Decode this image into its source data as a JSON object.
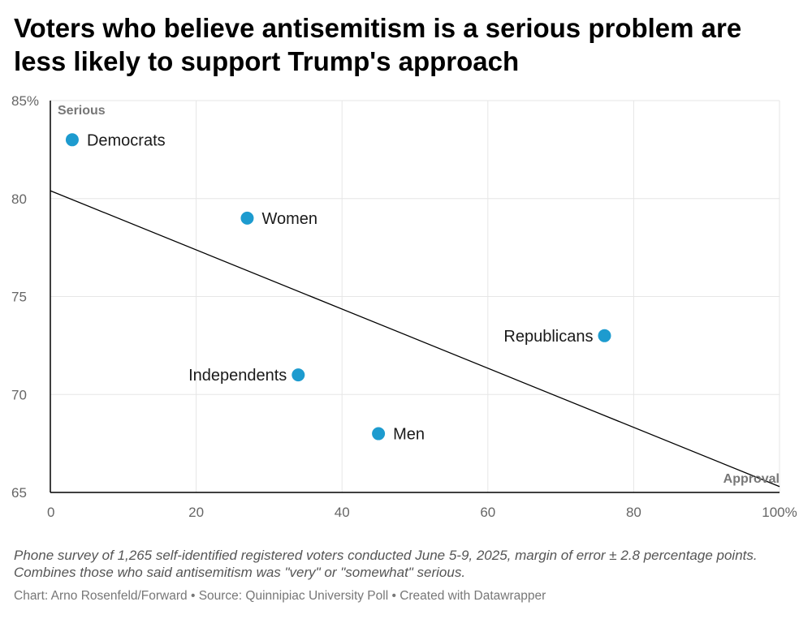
{
  "title": "Voters who believe antisemitism is a serious problem are less likely to support Trump's approach",
  "notes": "Phone survey of 1,265 self-identified registered voters conducted June 5-9, 2025, margin of error ± 2.8 percentage points. Combines those who said antisemitism was \"very\" or \"somewhat\" serious.",
  "footer": "Chart: Arno Rosenfeld/Forward • Source: Quinnipiac University Poll • Created with Datawrapper",
  "colors": {
    "point": "#1d9bcf",
    "grid": "#e6e6e6",
    "axis": "#000000",
    "trend": "#000000"
  },
  "chart_data": {
    "type": "scatter",
    "xlabel": "Approval",
    "ylabel": "Serious",
    "xlim": [
      0,
      100
    ],
    "ylim": [
      65,
      85
    ],
    "x_ticks": [
      {
        "value": 0,
        "label": "0"
      },
      {
        "value": 20,
        "label": "20"
      },
      {
        "value": 40,
        "label": "40"
      },
      {
        "value": 60,
        "label": "60"
      },
      {
        "value": 80,
        "label": "80"
      },
      {
        "value": 100,
        "label": "100%"
      }
    ],
    "y_ticks": [
      {
        "value": 65,
        "label": "65"
      },
      {
        "value": 70,
        "label": "70"
      },
      {
        "value": 75,
        "label": "75"
      },
      {
        "value": 80,
        "label": "80"
      },
      {
        "value": 85,
        "label": "85%"
      }
    ],
    "points": [
      {
        "name": "Democrats",
        "x": 3,
        "y": 83,
        "label_side": "right"
      },
      {
        "name": "Women",
        "x": 27,
        "y": 79,
        "label_side": "right"
      },
      {
        "name": "Republicans",
        "x": 76,
        "y": 73,
        "label_side": "left"
      },
      {
        "name": "Independents",
        "x": 34,
        "y": 71,
        "label_side": "left"
      },
      {
        "name": "Men",
        "x": 45,
        "y": 68,
        "label_side": "right"
      }
    ],
    "trendline": {
      "x": [
        0,
        100
      ],
      "y": [
        80.4,
        65.3
      ]
    },
    "grid": true
  }
}
